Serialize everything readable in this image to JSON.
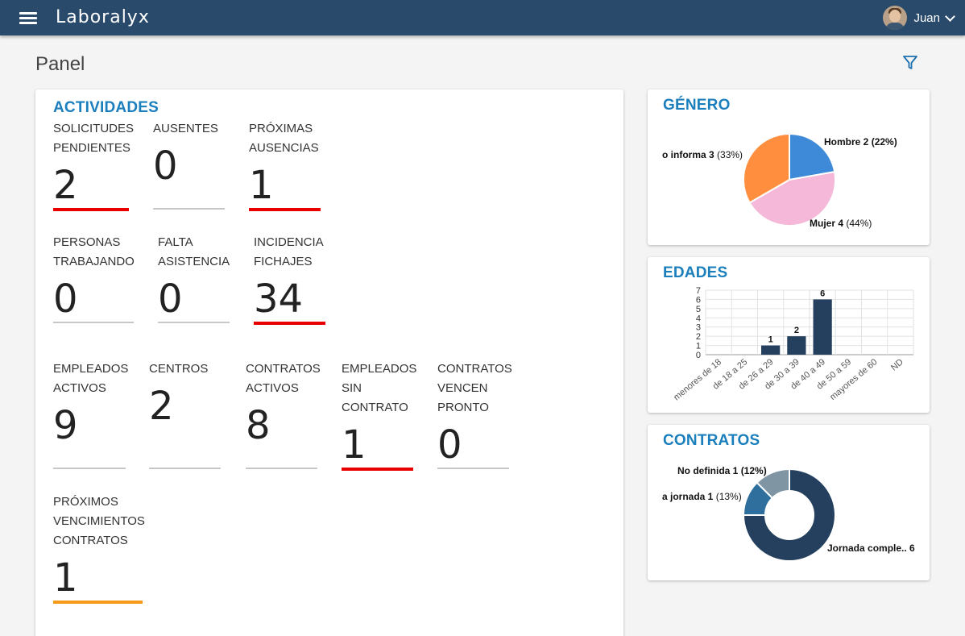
{
  "app": {
    "brand": "Laboralyx",
    "user": "Juan"
  },
  "page": {
    "title": "Panel"
  },
  "activities": {
    "title": "ACTIVIDADES",
    "stats": [
      {
        "label1": "SOLICITUDES",
        "label2": "PENDIENTES",
        "label3": "",
        "value": "2",
        "highlight": "red"
      },
      {
        "label1": "",
        "label2": "AUSENTES",
        "label3": "",
        "value": "0",
        "highlight": "none"
      },
      {
        "label1": "PRÓXIMAS",
        "label2": "AUSENCIAS",
        "label3": "",
        "value": "1",
        "highlight": "red"
      },
      {
        "label1": "PERSONAS",
        "label2": "TRABAJANDO",
        "label3": "",
        "value": "0",
        "highlight": "none"
      },
      {
        "label1": "FALTA",
        "label2": "ASISTENCIA",
        "label3": "",
        "value": "0",
        "highlight": "none"
      },
      {
        "label1": "INCIDENCIA",
        "label2": "FICHAJES",
        "label3": "",
        "value": "34",
        "highlight": "red"
      },
      {
        "label1": "",
        "label2": "EMPLEADOS",
        "label3": "ACTIVOS",
        "value": "9",
        "highlight": "none"
      },
      {
        "label1": "",
        "label2": "",
        "label3": "CENTROS",
        "value": "2",
        "highlight": "none"
      },
      {
        "label1": "",
        "label2": "CONTRATOS",
        "label3": "ACTIVOS",
        "value": "8",
        "highlight": "none"
      },
      {
        "label1": "EMPLEADOS",
        "label2": "SIN",
        "label3": "CONTRATO",
        "value": "1",
        "highlight": "red"
      },
      {
        "label1": "CONTRATOS",
        "label2": "VENCEN",
        "label3": "PRONTO",
        "value": "0",
        "highlight": "none"
      },
      {
        "label1": "PRÓXIMOS",
        "label2": "VENCIMIENTOS",
        "label3": "CONTRATOS",
        "value": "1",
        "highlight": "orange"
      }
    ]
  },
  "colors": {
    "header": "#2a4a6b",
    "accent": "#1b7fbd",
    "alert": "#e80000",
    "warning": "#f79a1c"
  },
  "chart_data": [
    {
      "type": "pie",
      "title": "GÉNERO",
      "slices": [
        {
          "name": "Hombre",
          "value": 2,
          "label": "Hombre 2",
          "pct": "(22%)",
          "color": "#3f8ad8"
        },
        {
          "name": "Mujer",
          "value": 4,
          "label": "Mujer 4",
          "pct": "(44%)",
          "color": "#f5b8d8"
        },
        {
          "name": "No informa",
          "value": 3,
          "label": "o informa 3",
          "pct": "(33%)",
          "color": "#ff8f3f"
        }
      ]
    },
    {
      "type": "bar",
      "title": "EDADES",
      "categories": [
        "menores de 18",
        "de 18 a 25",
        "de 26 a 29",
        "de 30 a 39",
        "de 40 a 49",
        "de 50 a 59",
        "mayores de 60",
        "ND"
      ],
      "values": [
        0,
        0,
        1,
        2,
        6,
        0,
        0,
        0
      ],
      "value_labels": [
        "",
        "",
        "1",
        "2",
        "6",
        "",
        "",
        ""
      ],
      "ylim": [
        0,
        7
      ],
      "yticks": [
        "0",
        "1",
        "2",
        "3",
        "4",
        "5",
        "6",
        "7"
      ],
      "grid": true,
      "color": "#25405f"
    },
    {
      "type": "pie",
      "subtype": "donut",
      "title": "CONTRATOS",
      "slices": [
        {
          "name": "Jornada completa",
          "value": 6,
          "label": "Jornada comple.. 6",
          "pct": "",
          "color": "#25405f"
        },
        {
          "name": "Media jornada",
          "value": 1,
          "label": "a jornada 1",
          "pct": "(13%)",
          "color": "#2e6f9e"
        },
        {
          "name": "No definida",
          "value": 1,
          "label": "No definida 1",
          "pct": "(12%)",
          "color": "#7f95a3"
        }
      ]
    }
  ]
}
